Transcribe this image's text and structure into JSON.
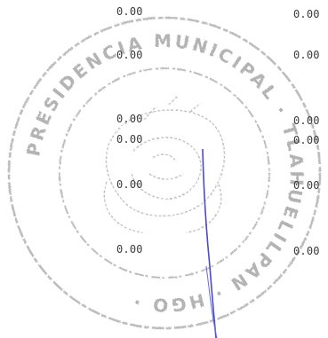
{
  "seal": {
    "ring_text": "PRESIDENCIA MUNICIPAL · TLAHUELILPAN · HGO ·",
    "ink_color": "#b9b9b9"
  },
  "signature": {
    "ink_color": "#4a4ad0"
  },
  "amounts": {
    "col_a": [
      "0.00",
      "0.00",
      "0.00",
      "0.00",
      "0.00",
      "0.00"
    ],
    "col_b": [
      "0.00",
      "0.00",
      "0.00",
      "0.00",
      "0.00",
      "0.00"
    ]
  }
}
